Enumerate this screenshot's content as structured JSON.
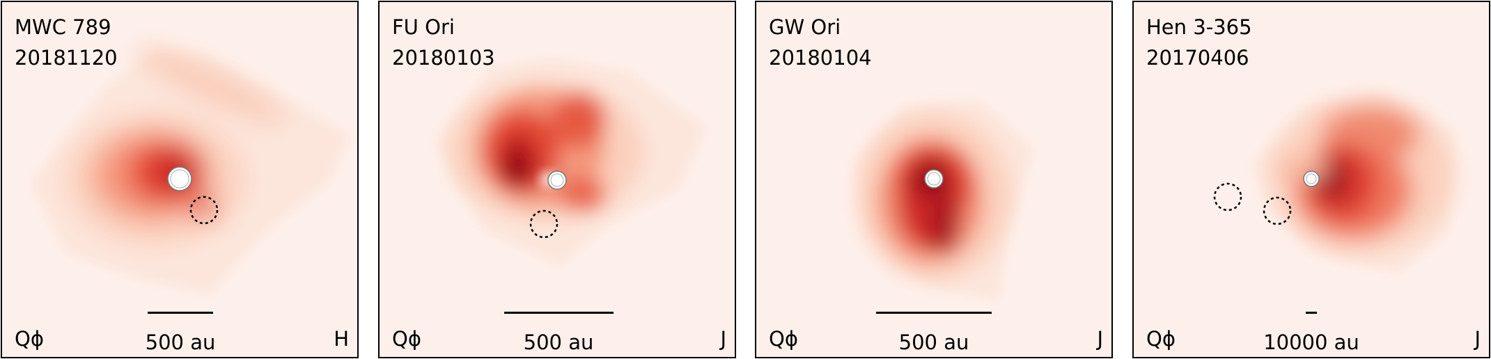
{
  "colors": {
    "background": "#fdf0eb",
    "light": "#fbcdb9",
    "mid": "#ef6e52",
    "strong": "#d5292a",
    "dark": "#8b0d18",
    "frame": "#000000"
  },
  "panels": [
    {
      "object": "MWC 789",
      "date": "20181120",
      "polarization": "Qϕ",
      "band": "H",
      "scalebar_label": "500 au"
    },
    {
      "object": "FU Ori",
      "date": "20180103",
      "polarization": "Qϕ",
      "band": "J",
      "scalebar_label": "500 au"
    },
    {
      "object": "GW Ori",
      "date": "20180104",
      "polarization": "Qϕ",
      "band": "J",
      "scalebar_label": "500 au"
    },
    {
      "object": "Hen 3-365",
      "date": "20170406",
      "polarization": "Qϕ",
      "band": "J",
      "scalebar_label": "10000 au"
    }
  ]
}
